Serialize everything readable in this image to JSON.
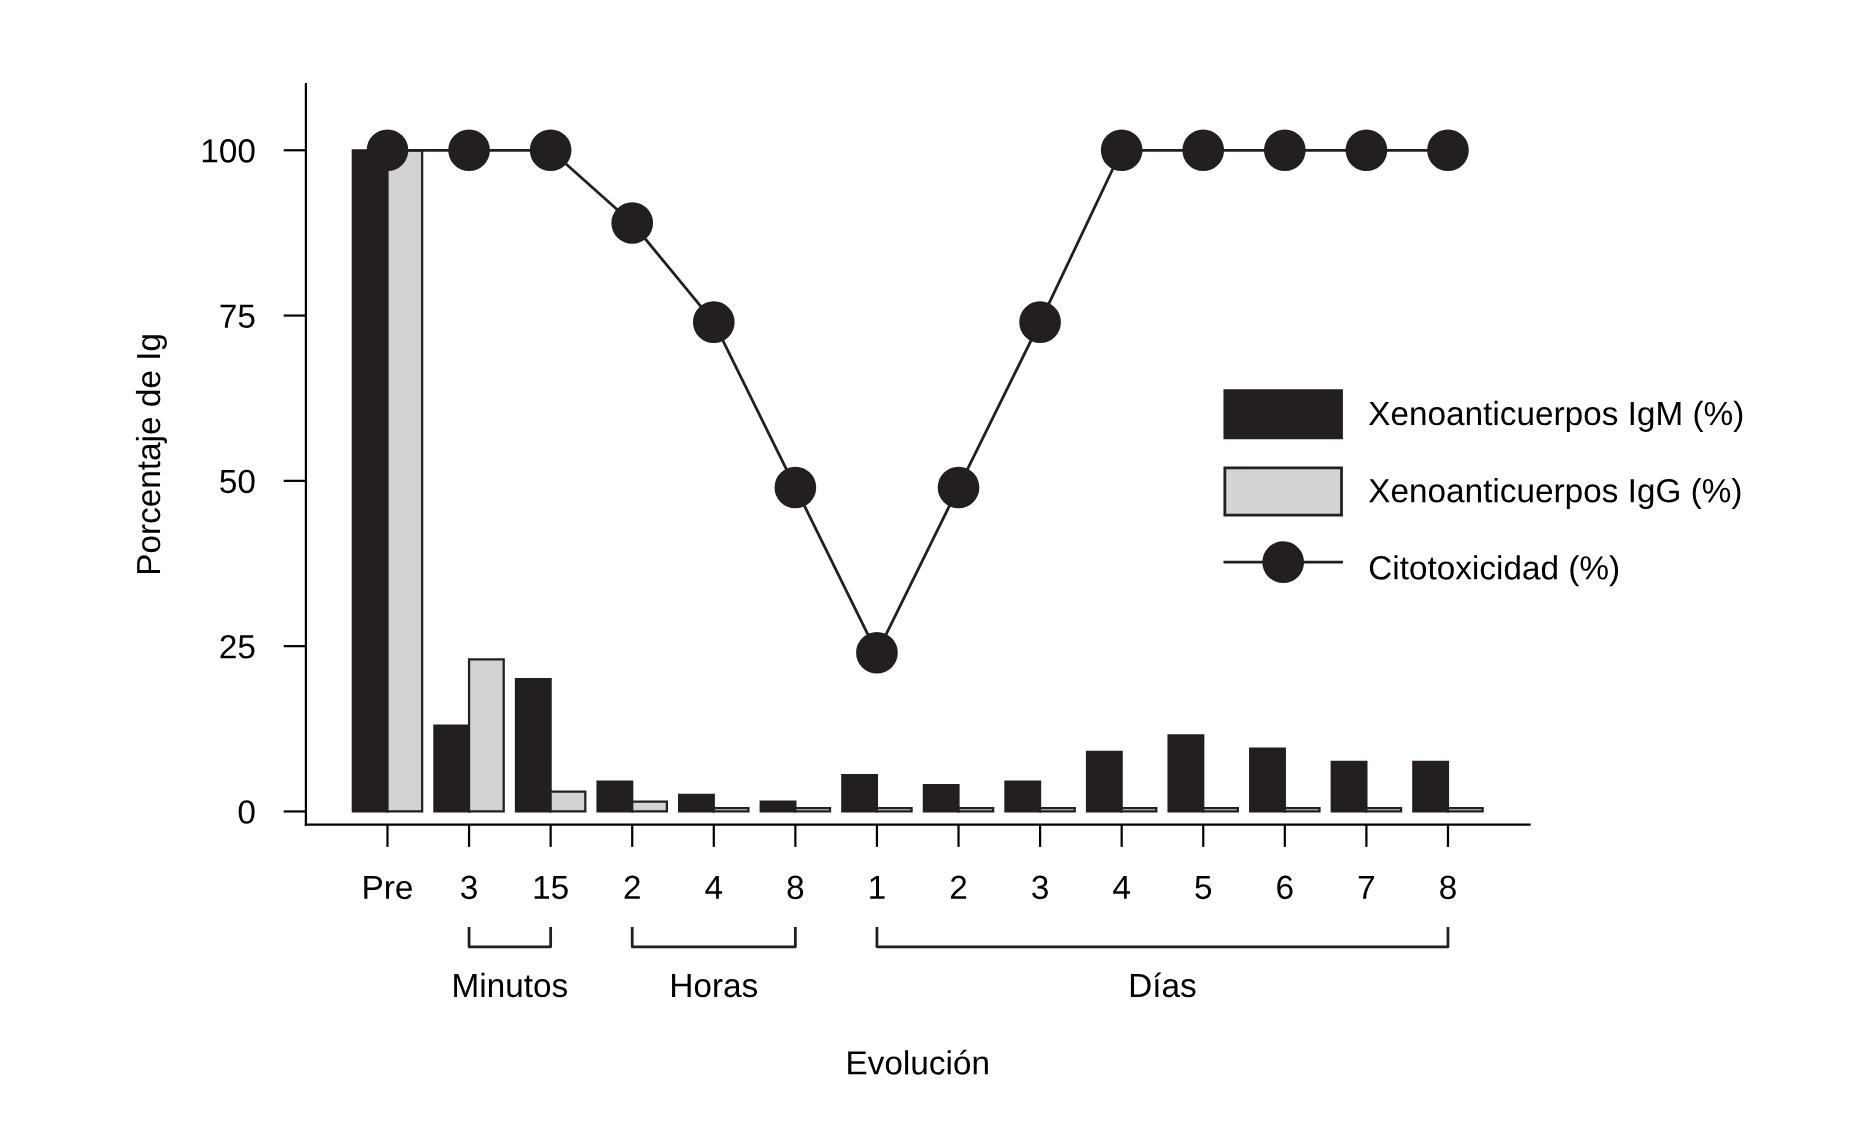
{
  "chart_data": {
    "type": "bar",
    "xlabel": "Evolución",
    "ylabel": "Porcentaje de Ig",
    "categories": [
      "Pre",
      "3",
      "15",
      "2",
      "4",
      "8",
      "1",
      "2",
      "3",
      "4",
      "5",
      "6",
      "7",
      "8"
    ],
    "series": [
      {
        "name": "Xenoanticuerpos IgM (%)",
        "color": "#231f20",
        "values": [
          100,
          13,
          20,
          4.5,
          2.5,
          1.5,
          5.5,
          4,
          4.5,
          9,
          11.5,
          9.5,
          7.5,
          7.5
        ]
      },
      {
        "name": "Xenoanticuerpos IgG (%)",
        "color": "#d1d3d4",
        "values": [
          100,
          23,
          3,
          1.5,
          0.5,
          0.5,
          0.5,
          0.5,
          0.5,
          0.5,
          0.5,
          0.5,
          0.5,
          0.5
        ]
      },
      {
        "name": "Citotoxicidad (%)",
        "type": "line",
        "color": "#231f20",
        "marker": "circle",
        "values": [
          100,
          100,
          100,
          89,
          74,
          49,
          24,
          49,
          74,
          100,
          100,
          100,
          100,
          100
        ]
      }
    ],
    "annotations": [
      "Minutos",
      "Horas",
      "Días"
    ],
    "ylim": [
      -2,
      110
    ],
    "yticks": [
      0,
      25,
      50,
      75,
      100
    ],
    "grid": false,
    "legend": "right"
  }
}
